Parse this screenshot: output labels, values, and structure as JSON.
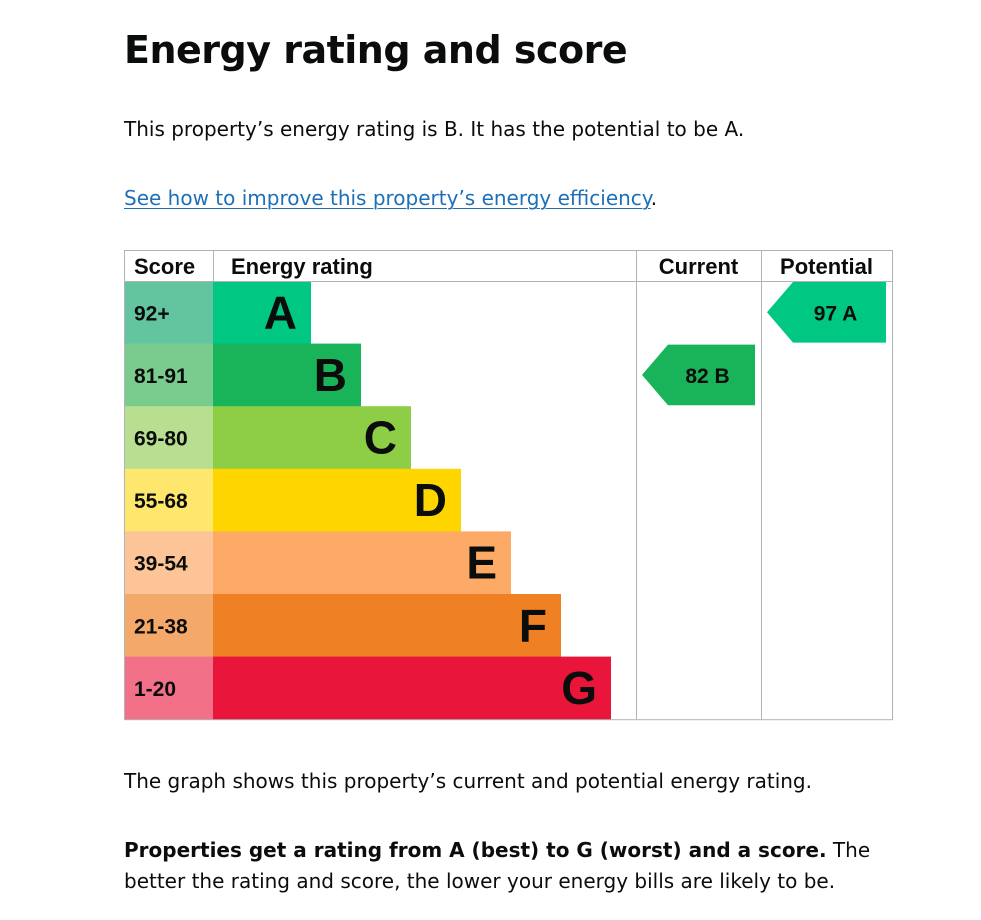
{
  "page": {
    "title": "Energy rating and score",
    "intro": "This property’s energy rating is B. It has the potential to be A.",
    "improve_link": "See how to improve this property’s energy efficiency",
    "improve_link_suffix": ".",
    "caption": "The graph shows this property’s current and potential energy rating.",
    "summary_bold": "Properties get a rating from A (best) to G (worst) and a score.",
    "summary_rest": " The better the rating and score, the lower your energy bills are likely to be."
  },
  "chart_data": {
    "type": "bar",
    "headers": {
      "score": "Score",
      "rating": "Energy rating",
      "current": "Current",
      "potential": "Potential"
    },
    "bands": [
      {
        "letter": "A",
        "score": "92+",
        "bar_color": "#00c781",
        "score_color": "#62c5a0"
      },
      {
        "letter": "B",
        "score": "81-91",
        "bar_color": "#19b459",
        "score_color": "#7acc8e"
      },
      {
        "letter": "C",
        "score": "69-80",
        "bar_color": "#8dce46",
        "score_color": "#b8df8f"
      },
      {
        "letter": "D",
        "score": "55-68",
        "bar_color": "#ffd500",
        "score_color": "#ffe66c"
      },
      {
        "letter": "E",
        "score": "39-54",
        "bar_color": "#fcaa65",
        "score_color": "#fdc597"
      },
      {
        "letter": "F",
        "score": "21-38",
        "bar_color": "#ef8023",
        "score_color": "#f4a86a"
      },
      {
        "letter": "G",
        "score": "1-20",
        "bar_color": "#e9153b",
        "score_color": "#f37089"
      }
    ],
    "current": {
      "score": "82",
      "letter": "B",
      "label": "82  B",
      "color": "#19b459"
    },
    "potential": {
      "score": "97",
      "letter": "A",
      "label": "97  A",
      "color": "#00c781"
    }
  }
}
